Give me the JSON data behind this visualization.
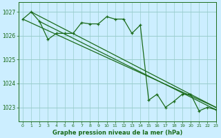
{
  "title": "Graphe pression niveau de la mer (hPa)",
  "background_color": "#cceeff",
  "grid_color": "#99cccc",
  "line_color": "#1a6b1a",
  "text_color": "#1a6b1a",
  "xlim": [
    -0.5,
    23
  ],
  "ylim": [
    1022.4,
    1027.4
  ],
  "yticks": [
    1023,
    1024,
    1025,
    1026,
    1027
  ],
  "xticks": [
    0,
    1,
    2,
    3,
    4,
    5,
    6,
    7,
    8,
    9,
    10,
    11,
    12,
    13,
    14,
    15,
    16,
    17,
    18,
    19,
    20,
    21,
    22,
    23
  ],
  "main_x": [
    0,
    1,
    2,
    3,
    4,
    5,
    6,
    7,
    8,
    9,
    10,
    11,
    12,
    13,
    14,
    15,
    16,
    17,
    18,
    19,
    20,
    21,
    22,
    23
  ],
  "main_y": [
    1026.7,
    1027.0,
    1026.6,
    1025.85,
    1026.1,
    1026.1,
    1026.1,
    1026.55,
    1026.5,
    1026.5,
    1026.8,
    1026.7,
    1026.7,
    1026.1,
    1026.45,
    1023.3,
    1023.55,
    1023.0,
    1023.25,
    1023.55,
    1023.55,
    1022.85,
    1023.0,
    1022.9
  ],
  "trend_lines": [
    {
      "x": [
        0,
        23
      ],
      "y": [
        1026.7,
        1023.0
      ]
    },
    {
      "x": [
        1,
        23
      ],
      "y": [
        1027.0,
        1023.0
      ]
    },
    {
      "x": [
        2,
        23
      ],
      "y": [
        1026.6,
        1022.9
      ]
    }
  ]
}
